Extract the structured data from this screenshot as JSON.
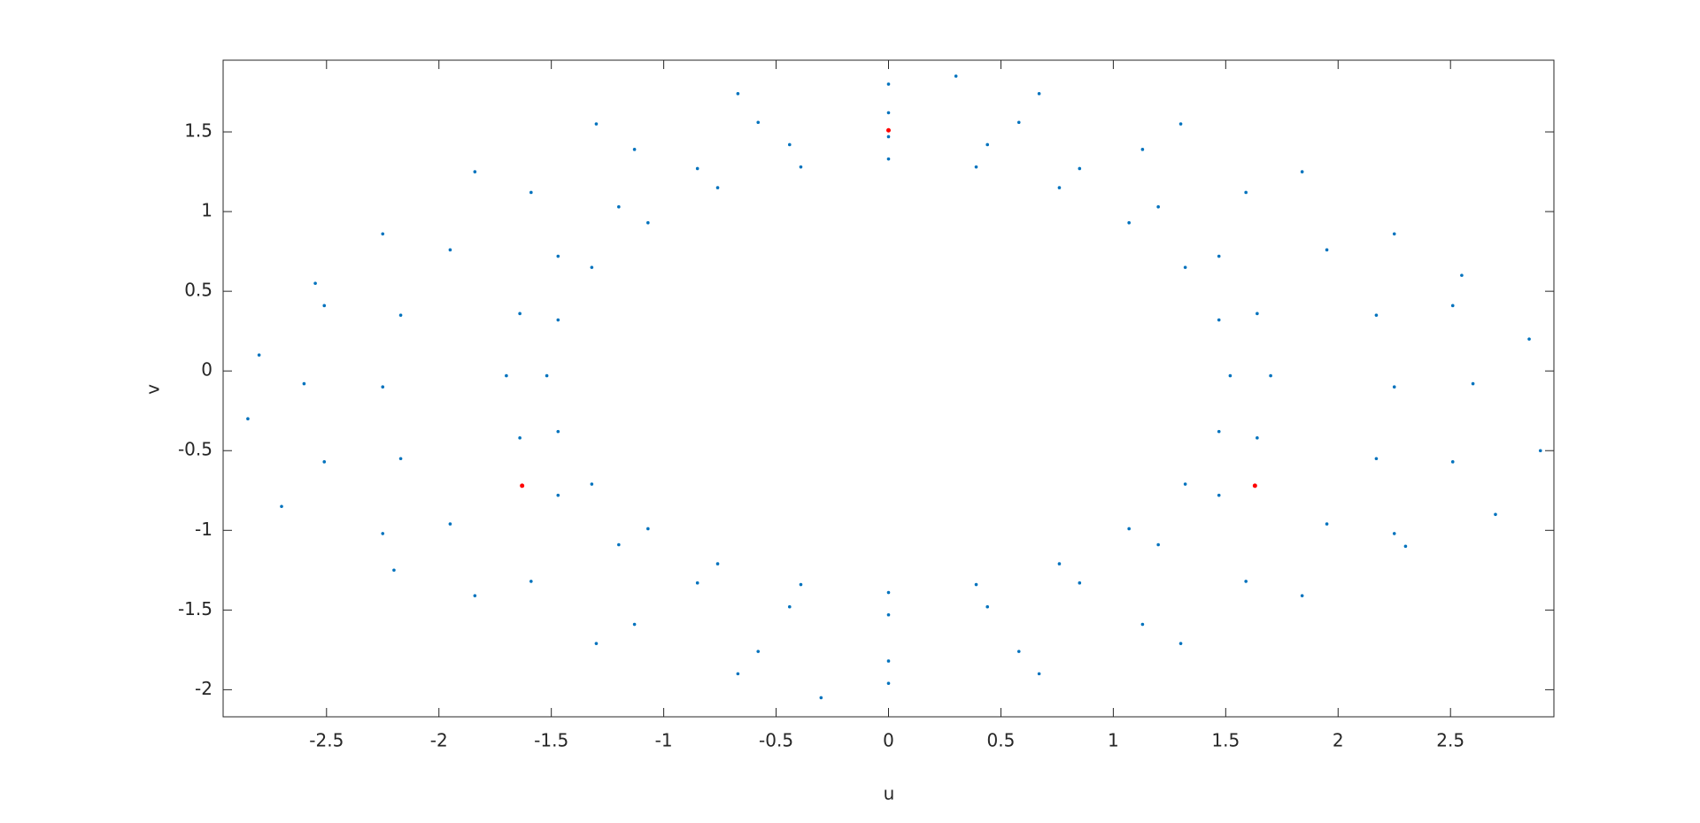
{
  "chart_data": {
    "type": "scatter",
    "x_label": "u",
    "y_label": "v",
    "xlim": [
      -2.96,
      2.96
    ],
    "ylim": [
      -2.17,
      1.95
    ],
    "xticks": [
      -2.5,
      -2,
      -1.5,
      -1,
      -0.5,
      0,
      0.5,
      1,
      1.5,
      2,
      2.5
    ],
    "yticks": [
      -2,
      -1.5,
      -1,
      -0.5,
      0,
      0.5,
      1,
      1.5
    ],
    "grid": false,
    "box": true,
    "series": [
      {
        "color": "#0072bd",
        "x": [
          1.7,
          1.64,
          1.47,
          1.2,
          0.85,
          0.44,
          0,
          -0.44,
          -0.85,
          -1.2,
          -1.47,
          -1.64,
          -1.7,
          -1.64,
          -1.47,
          -1.2,
          -0.85,
          -0.44,
          0,
          0.44,
          0.85,
          1.2,
          1.47,
          1.64,
          1.52,
          1.47,
          1.32,
          1.07,
          0.76,
          0.39,
          0,
          -0.39,
          -0.76,
          -1.07,
          -1.32,
          -1.47,
          -1.52,
          -1.47,
          -1.32,
          -1.07,
          -0.76,
          -0.39,
          0,
          0.39,
          0.76,
          1.07,
          1.32,
          1.47,
          2.25,
          2.17,
          1.95,
          1.59,
          1.13,
          0.58,
          0,
          -0.58,
          -1.13,
          -1.59,
          -1.95,
          -2.17,
          -2.25,
          -2.17,
          -1.95,
          -1.59,
          -1.13,
          -0.58,
          0,
          0.58,
          1.13,
          1.59,
          1.95,
          2.17,
          2.6,
          2.51,
          2.25,
          1.84,
          1.3,
          0.67,
          0,
          -0.67,
          -1.3,
          -1.84,
          -2.25,
          -2.51,
          -2.6,
          -2.51,
          -2.25,
          -1.84,
          -1.3,
          -0.67,
          0,
          0.67,
          1.3,
          1.84,
          2.25,
          2.51,
          2.85,
          -2.85,
          2.9,
          -2.8,
          2.7,
          -2.7,
          2.3,
          -2.2,
          2.55,
          -2.55,
          0.3,
          -0.3
        ],
        "y": [
          -0.03,
          0.36,
          0.72,
          1.03,
          1.27,
          1.42,
          1.47,
          1.42,
          1.27,
          1.03,
          0.72,
          0.36,
          -0.03,
          -0.42,
          -0.78,
          -1.09,
          -1.33,
          -1.48,
          -1.53,
          -1.48,
          -1.33,
          -1.09,
          -0.78,
          -0.42,
          -0.03,
          0.32,
          0.65,
          0.93,
          1.15,
          1.28,
          1.33,
          1.28,
          1.15,
          0.93,
          0.65,
          0.32,
          -0.03,
          -0.38,
          -0.71,
          -0.99,
          -1.21,
          -1.34,
          -1.39,
          -1.34,
          -1.21,
          -0.99,
          -0.71,
          -0.38,
          -0.1,
          0.35,
          0.76,
          1.12,
          1.39,
          1.56,
          1.62,
          1.56,
          1.39,
          1.12,
          0.76,
          0.35,
          -0.1,
          -0.55,
          -0.96,
          -1.32,
          -1.59,
          -1.76,
          -1.82,
          -1.76,
          -1.59,
          -1.32,
          -0.96,
          -0.55,
          -0.08,
          0.41,
          0.86,
          1.25,
          1.55,
          1.74,
          1.8,
          1.74,
          1.55,
          1.25,
          0.86,
          0.41,
          -0.08,
          -0.57,
          -1.02,
          -1.41,
          -1.71,
          -1.9,
          -1.96,
          -1.9,
          -1.71,
          -1.41,
          -1.02,
          -0.57,
          0.2,
          -0.3,
          -0.5,
          0.1,
          -0.9,
          -0.85,
          -1.1,
          -1.25,
          0.6,
          0.55,
          1.85,
          -2.05
        ]
      },
      {
        "color": "#ff0000",
        "x": [
          0,
          -1.63,
          1.63
        ],
        "y": [
          1.51,
          -0.72,
          -0.72
        ]
      }
    ]
  }
}
